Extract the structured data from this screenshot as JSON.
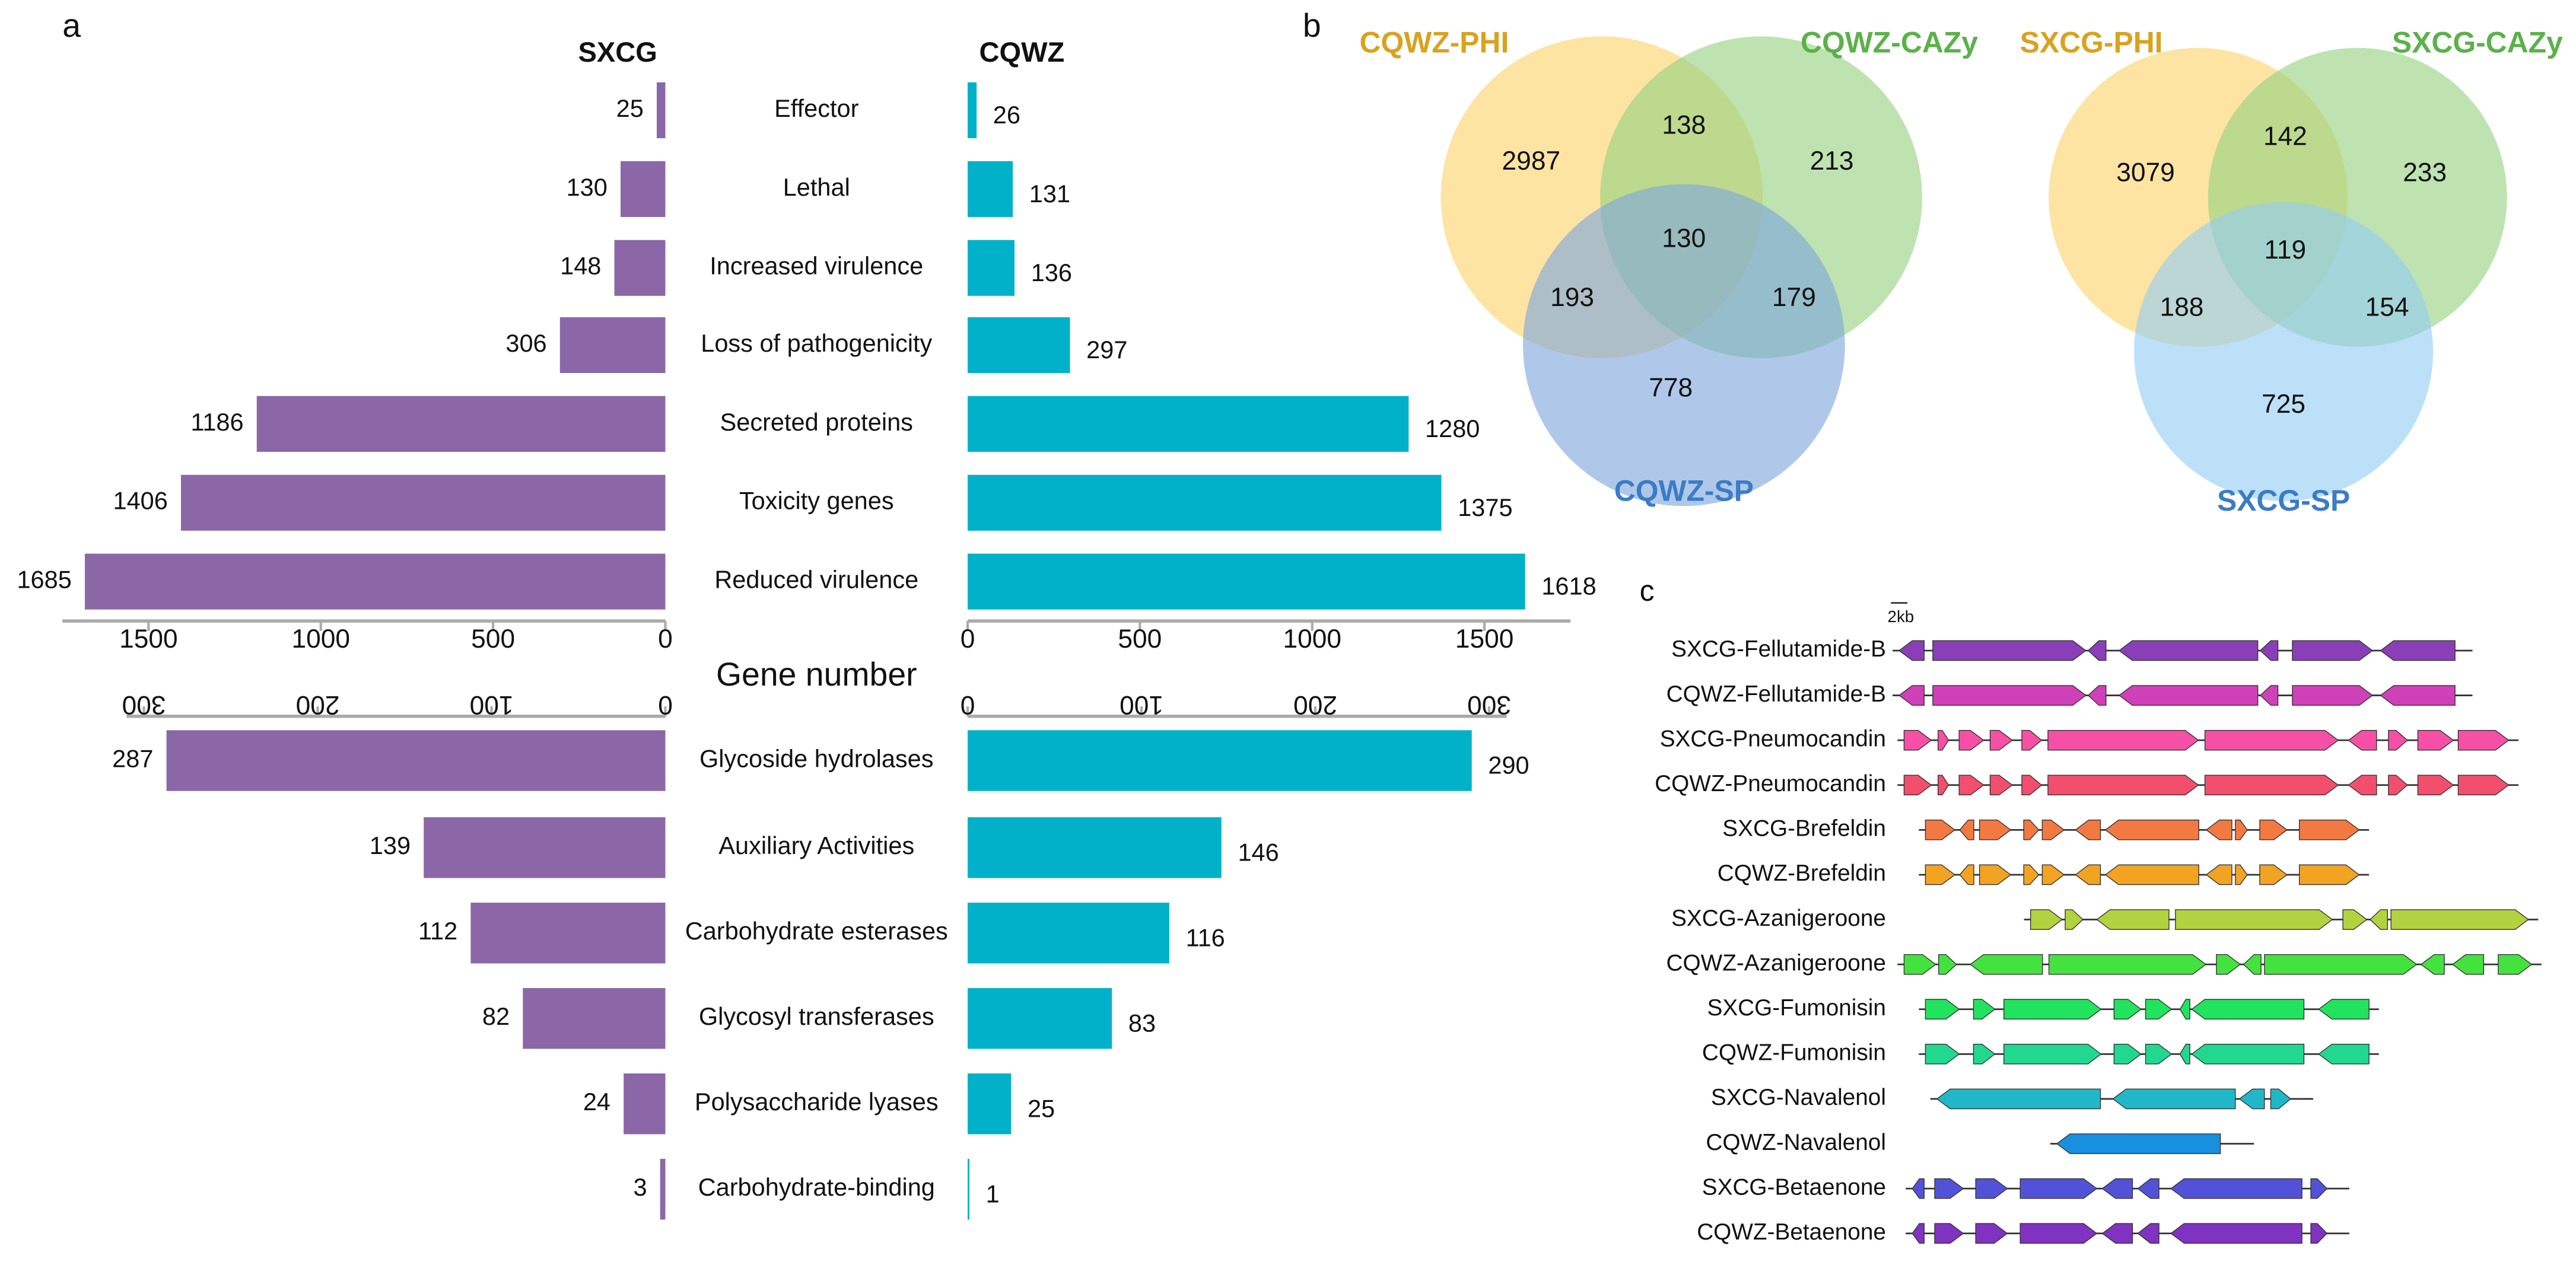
{
  "panels": [
    "a",
    "b",
    "c"
  ],
  "chart_data": [
    {
      "type": "butterfly",
      "xlabel": "Gene number",
      "categories": [
        "Effector",
        "Lethal",
        "Increased virulence",
        "Loss of pathogenicity",
        "Secreted proteins",
        "Toxicity genes",
        "Reduced virulence"
      ],
      "series": [
        {
          "name": "SXCG",
          "color": "#8b67a7",
          "values": [
            25,
            130,
            148,
            306,
            1186,
            1406,
            1685
          ]
        },
        {
          "name": "CQWZ",
          "color": "#00b1c9",
          "values": [
            26,
            131,
            136,
            297,
            1280,
            1375,
            1618
          ]
        }
      ],
      "xlim": [
        0,
        1750
      ],
      "xticks": [
        0,
        500,
        1000,
        1500
      ]
    },
    {
      "type": "butterfly",
      "categories": [
        "Glycoside hydrolases",
        "Auxiliary Activities",
        "Carbohydrate esterases",
        "Glycosyl transferases",
        "Polysaccharide lyases",
        "Carbohydrate-binding"
      ],
      "series": [
        {
          "color": "#8b67a7",
          "values": [
            287,
            139,
            112,
            82,
            24,
            3
          ]
        },
        {
          "color": "#00b1c9",
          "values": [
            290,
            146,
            116,
            83,
            25,
            1
          ]
        }
      ],
      "xlim": [
        0,
        310
      ],
      "xticks": [
        0,
        100,
        200,
        300
      ]
    },
    {
      "type": "venn",
      "sets": [
        {
          "name": "CQWZ-PHI",
          "color": "#fcd46b",
          "label_color": "#d9a21f"
        },
        {
          "name": "CQWZ-CAZy",
          "color": "#96d27f",
          "label_color": "#5bb14a"
        },
        {
          "name": "CQWZ-SP",
          "color": "#7ea7dc",
          "label_color": "#3b7cc6"
        }
      ],
      "values": [
        2987,
        213,
        778,
        138,
        193,
        179,
        130
      ]
    },
    {
      "type": "venn",
      "sets": [
        {
          "name": "SXCG-PHI",
          "color": "#fcd46b",
          "label_color": "#d9a21f"
        },
        {
          "name": "SXCG-CAZy",
          "color": "#96d27f",
          "label_color": "#5bb14a"
        },
        {
          "name": "SXCG-SP",
          "color": "#93cdf4",
          "label_color": "#3b7cc6"
        }
      ],
      "values": [
        3079,
        233,
        725,
        142,
        188,
        154,
        119
      ]
    }
  ],
  "gene_clusters": {
    "scale_label": "2kb",
    "clusters": [
      {
        "name": "SXCG-Fellutamide-B",
        "color": "#8a3fb8"
      },
      {
        "name": "CQWZ-Fellutamide-B",
        "color": "#d040b8"
      },
      {
        "name": "SXCG-Pneumocandin",
        "color": "#f550a5"
      },
      {
        "name": "CQWZ-Pneumocandin",
        "color": "#f24f6e"
      },
      {
        "name": "SXCG-Brefeldin",
        "color": "#f27a42"
      },
      {
        "name": "CQWZ-Brefeldin",
        "color": "#f2a322"
      },
      {
        "name": "SXCG-Azanigeroone",
        "color": "#b2d23f"
      },
      {
        "name": "CQWZ-Azanigeroone",
        "color": "#44e23f"
      },
      {
        "name": "SXCG-Fumonisin",
        "color": "#22e35e"
      },
      {
        "name": "CQWZ-Fumonisin",
        "color": "#22d890"
      },
      {
        "name": "SXCG-Navalenol",
        "color": "#20b8c8"
      },
      {
        "name": "CQWZ-Navalenol",
        "color": "#1890e0"
      },
      {
        "name": "SXCG-Betaenone",
        "color": "#5252d8"
      },
      {
        "name": "CQWZ-Betaenone",
        "color": "#8032c0"
      }
    ]
  }
}
